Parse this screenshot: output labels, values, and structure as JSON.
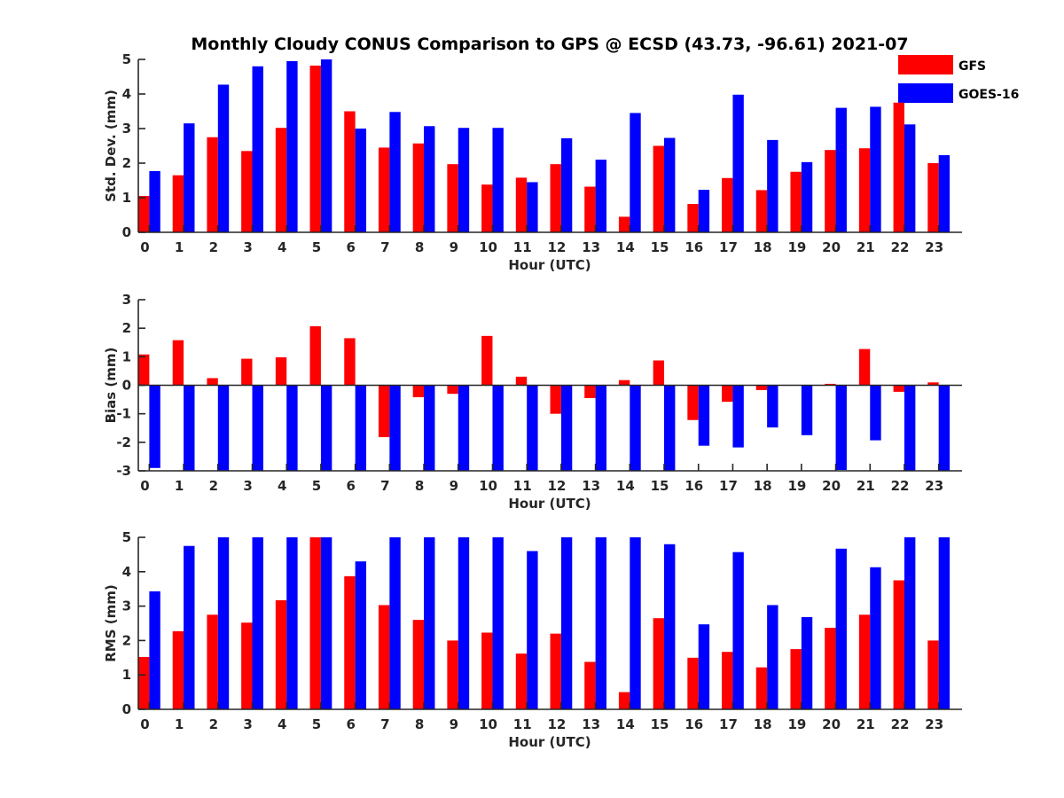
{
  "chart_data": {
    "title": "Monthly Cloudy CONUS Comparison to GPS @ ECSD (43.73, -96.61) 2021-07",
    "legend": {
      "position": "top-right",
      "entries": [
        {
          "name": "GFS",
          "color": "#ff0000"
        },
        {
          "name": "GOES-16",
          "color": "#0000ff"
        }
      ]
    },
    "series_colors": {
      "GFS": "#ff0000",
      "GOES-16": "#0000ff"
    },
    "panels": [
      {
        "type": "bar",
        "ylabel": "Std. Dev. (mm)",
        "xlabel": "Hour (UTC)",
        "ylim": [
          0,
          5
        ],
        "yticks": [
          "0",
          "1",
          "2",
          "3",
          "4",
          "5"
        ],
        "categories": [
          "0",
          "1",
          "2",
          "3",
          "4",
          "5",
          "6",
          "7",
          "8",
          "9",
          "10",
          "11",
          "12",
          "13",
          "14",
          "15",
          "16",
          "17",
          "18",
          "19",
          "20",
          "21",
          "22",
          "23"
        ],
        "series": [
          {
            "name": "GFS",
            "values": [
              1.05,
              1.65,
              2.75,
              2.35,
              3.02,
              4.82,
              3.5,
              2.45,
              2.57,
              1.97,
              1.38,
              1.58,
              1.97,
              1.32,
              0.45,
              2.5,
              0.82,
              1.57,
              1.22,
              1.75,
              2.38,
              2.43,
              3.75,
              2.0
            ]
          },
          {
            "name": "GOES-16",
            "values": [
              1.77,
              3.15,
              4.27,
              4.8,
              4.95,
              5.0,
              3.0,
              3.48,
              3.07,
              3.02,
              3.02,
              1.45,
              2.72,
              2.1,
              3.45,
              2.73,
              1.23,
              3.98,
              2.67,
              2.03,
              3.6,
              3.63,
              3.12,
              2.23
            ]
          }
        ]
      },
      {
        "type": "bar",
        "ylabel": "Bias (mm)",
        "xlabel": "Hour (UTC)",
        "ylim": [
          -3,
          3
        ],
        "yticks": [
          "-3",
          "-2",
          "-1",
          "0",
          "1",
          "2",
          "3"
        ],
        "zero_line": true,
        "categories": [
          "0",
          "1",
          "2",
          "3",
          "4",
          "5",
          "6",
          "7",
          "8",
          "9",
          "10",
          "11",
          "12",
          "13",
          "14",
          "15",
          "16",
          "17",
          "18",
          "19",
          "20",
          "21",
          "22",
          "23"
        ],
        "series": [
          {
            "name": "GFS",
            "values": [
              1.08,
              1.58,
              0.25,
              0.93,
              0.98,
              2.07,
              1.65,
              -1.82,
              -0.42,
              -0.3,
              1.73,
              0.3,
              -1.0,
              -0.45,
              0.18,
              0.87,
              -1.22,
              -0.58,
              -0.17,
              0.0,
              0.05,
              1.27,
              -0.23,
              0.1
            ]
          },
          {
            "name": "GOES-16",
            "values": [
              -2.9,
              -3.0,
              -3.0,
              -3.0,
              -3.0,
              -3.0,
              -3.0,
              -3.0,
              -3.0,
              -3.0,
              -3.0,
              -3.0,
              -3.0,
              -3.0,
              -3.0,
              -3.0,
              -2.12,
              -2.18,
              -1.48,
              -1.75,
              -2.97,
              -1.93,
              -3.0,
              -3.0
            ]
          }
        ]
      },
      {
        "type": "bar",
        "ylabel": "RMS (mm)",
        "xlabel": "Hour (UTC)",
        "ylim": [
          0,
          5
        ],
        "yticks": [
          "0",
          "1",
          "2",
          "3",
          "4",
          "5"
        ],
        "categories": [
          "0",
          "1",
          "2",
          "3",
          "4",
          "5",
          "6",
          "7",
          "8",
          "9",
          "10",
          "11",
          "12",
          "13",
          "14",
          "15",
          "16",
          "17",
          "18",
          "19",
          "20",
          "21",
          "22",
          "23"
        ],
        "series": [
          {
            "name": "GFS",
            "values": [
              1.52,
              2.27,
              2.75,
              2.52,
              3.17,
              5.0,
              3.87,
              3.03,
              2.6,
              2.0,
              2.23,
              1.62,
              2.2,
              1.38,
              0.5,
              2.65,
              1.5,
              1.67,
              1.22,
              1.75,
              2.37,
              2.75,
              3.75,
              2.0
            ]
          },
          {
            "name": "GOES-16",
            "values": [
              3.43,
              4.75,
              5.0,
              5.0,
              5.0,
              5.0,
              4.3,
              5.0,
              5.0,
              5.0,
              5.0,
              4.6,
              5.0,
              5.0,
              5.0,
              4.8,
              2.47,
              4.57,
              3.03,
              2.68,
              4.67,
              4.13,
              5.0,
              5.0
            ]
          }
        ]
      }
    ]
  }
}
